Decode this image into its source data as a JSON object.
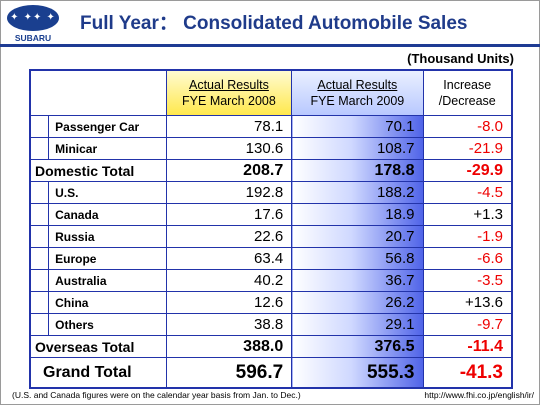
{
  "header": {
    "logo_word": "SUBARU",
    "title": "Full Year： Consolidated Automobile Sales",
    "units": "(Thousand Units)"
  },
  "table": {
    "col1": {
      "line1": "Actual Results",
      "line2": "FYE March 2008"
    },
    "col2": {
      "line1": "Actual Results",
      "line2": "FYE March 2009"
    },
    "col3": {
      "line1": "Increase",
      "line2": "/Decrease"
    },
    "rows": [
      {
        "label": "Passenger Car",
        "v2008": "78.1",
        "v2009": "70.1",
        "change": "-8.0"
      },
      {
        "label": "Minicar",
        "v2008": "130.6",
        "v2009": "108.7",
        "change": "-21.9"
      },
      {
        "label": "Domestic Total",
        "v2008": "208.7",
        "v2009": "178.8",
        "change": "-29.9"
      },
      {
        "label": "U.S.",
        "v2008": "192.8",
        "v2009": "188.2",
        "change": "-4.5"
      },
      {
        "label": "Canada",
        "v2008": "17.6",
        "v2009": "18.9",
        "change": "+1.3"
      },
      {
        "label": "Russia",
        "v2008": "22.6",
        "v2009": "20.7",
        "change": "-1.9"
      },
      {
        "label": "Europe",
        "v2008": "63.4",
        "v2009": "56.8",
        "change": "-6.6"
      },
      {
        "label": "Australia",
        "v2008": "40.2",
        "v2009": "36.7",
        "change": "-3.5"
      },
      {
        "label": "China",
        "v2008": "12.6",
        "v2009": "26.2",
        "change": "+13.6"
      },
      {
        "label": "Others",
        "v2008": "38.8",
        "v2009": "29.1",
        "change": "-9.7"
      },
      {
        "label": "Overseas Total",
        "v2008": "388.0",
        "v2009": "376.5",
        "change": "-11.4"
      },
      {
        "label": "Grand Total",
        "v2008": "596.7",
        "v2009": "555.3",
        "change": "-41.3"
      }
    ]
  },
  "footer": {
    "note": "(U.S. and Canada figures were on the calendar year basis from Jan. to Dec.)",
    "url": "http://www.fhi.co.jp/english/ir/"
  },
  "colors": {
    "brand_blue": "#1f3b8a",
    "negative": "#ee0000",
    "border": "#2233aa"
  }
}
